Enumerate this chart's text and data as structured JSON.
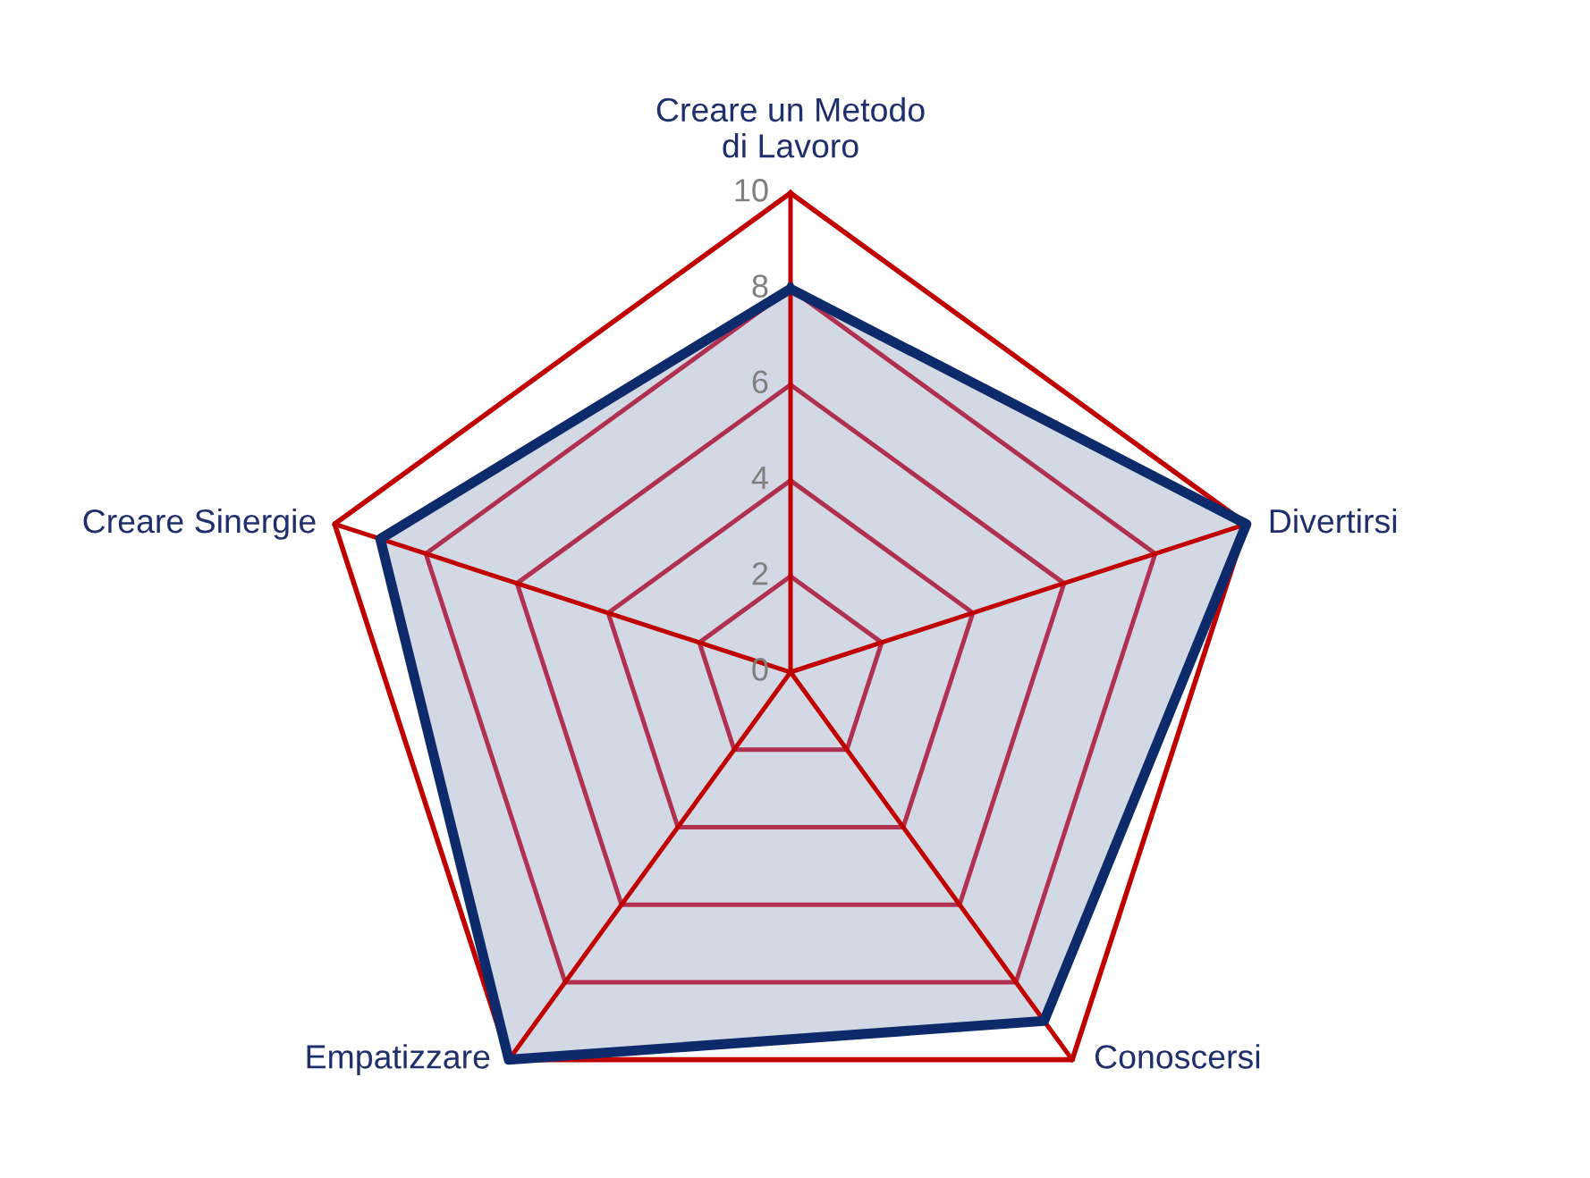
{
  "chart_data": {
    "type": "radar",
    "categories": [
      "Creare un Metodo\ndi Lavoro",
      "Divertirsi",
      "Conoscersi",
      "Empatizzare",
      "Creare Sinergie"
    ],
    "series": [
      {
        "color": "#0d2a6b",
        "values": [
          8,
          10,
          9,
          10,
          9
        ]
      }
    ],
    "ylim": [
      0,
      10
    ],
    "yticks": [
      0,
      2,
      4,
      6,
      8,
      10
    ],
    "grid": true
  }
}
